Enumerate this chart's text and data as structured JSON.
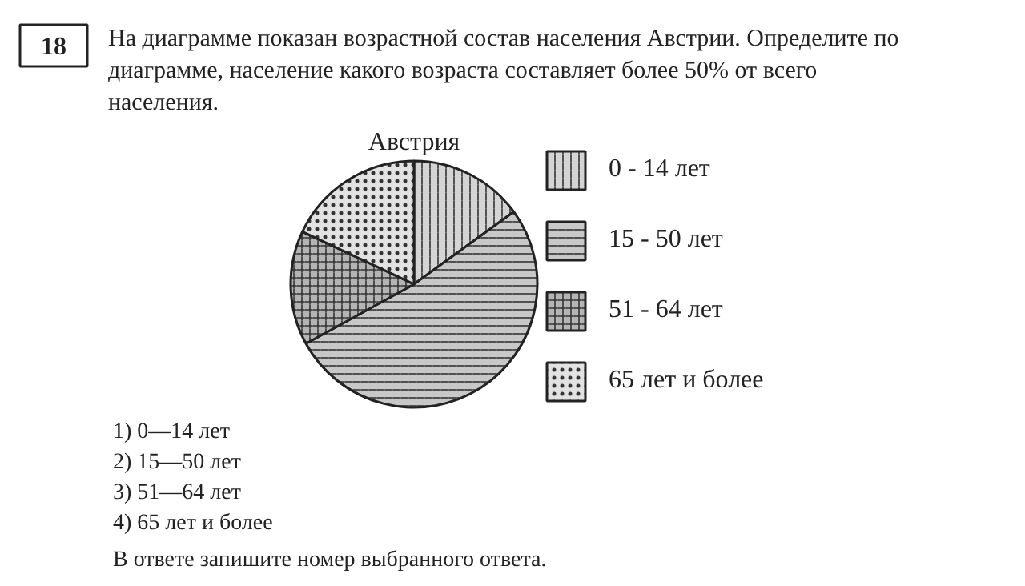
{
  "chart_data": {
    "type": "pie",
    "title": "Австрия",
    "subtitle": "На диаграмме показан возрастной состав населения Австрии. Определите по диаграмме, население какого возраста составляет более 50% от всего населения.",
    "categories": [
      "0 - 14 лет",
      "15 - 50 лет",
      "51 - 64 лет",
      "65 лет и более"
    ],
    "values": [
      15,
      52,
      15,
      18
    ],
    "colors": [
      "#d4d4d4",
      "#c8c8c8",
      "#b4b4b4",
      "#e2e2e2"
    ],
    "legend": "right",
    "annotations": [
      "18",
      "1) 0—14 лет",
      "2) 15—50 лет",
      "3) 51—64 лет",
      "4) 65 лет и более",
      "В ответе запишите номер выбранного ответа."
    ]
  }
}
